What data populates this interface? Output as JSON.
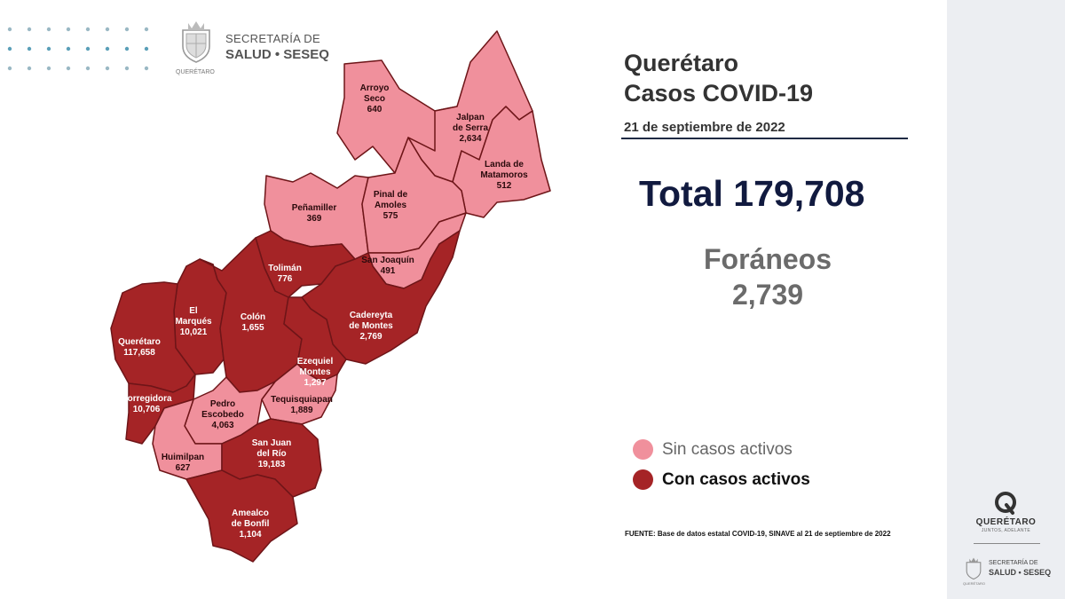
{
  "header": {
    "secretaria_label": "SECRETARÍA DE",
    "secretaria_name": "SALUD • SESEQ",
    "state_sub": "QUERÉTARO"
  },
  "title": {
    "line1": "Querétaro",
    "line2": "Casos COVID-19"
  },
  "date": "21 de septiembre de 2022",
  "total": "Total 179,708",
  "foraneos": {
    "label": "Foráneos",
    "value": "2,739"
  },
  "legend": [
    {
      "label": "Sin casos activos",
      "color": "#f0909c"
    },
    {
      "label": "Con casos activos",
      "color": "#a52426"
    }
  ],
  "source": "FUENTE: Base de datos estatal COVID-19, SINAVE al 21 de septiembre de 2022",
  "colors": {
    "inactive": "#f0909c",
    "active": "#a52426",
    "border": "#6e1518",
    "title_dark": "#111a3f"
  },
  "municipalities": [
    {
      "name": "Arroyo Seco",
      "label_lines": [
        "Arroyo",
        "Seco"
      ],
      "cases": "640",
      "status": "inactive"
    },
    {
      "name": "Jalpan de Serra",
      "label_lines": [
        "Jalpan",
        "de Serra"
      ],
      "cases": "2,634",
      "status": "inactive"
    },
    {
      "name": "Landa de Matamoros",
      "label_lines": [
        "Landa de",
        "Matamoros"
      ],
      "cases": "512",
      "status": "inactive"
    },
    {
      "name": "Peñamiller",
      "label_lines": [
        "Peñamiller"
      ],
      "cases": "369",
      "status": "inactive"
    },
    {
      "name": "Pinal de Amoles",
      "label_lines": [
        "Pinal de",
        "Amoles"
      ],
      "cases": "575",
      "status": "inactive"
    },
    {
      "name": "San Joaquín",
      "label_lines": [
        "San Joaquín"
      ],
      "cases": "491",
      "status": "inactive"
    },
    {
      "name": "Tolimán",
      "label_lines": [
        "Tolimán"
      ],
      "cases": "776",
      "status": "active"
    },
    {
      "name": "El Marqués",
      "label_lines": [
        "El",
        "Marqués"
      ],
      "cases": "10,021",
      "status": "active"
    },
    {
      "name": "Colón",
      "label_lines": [
        "Colón"
      ],
      "cases": "1,655",
      "status": "active"
    },
    {
      "name": "Cadereyta de Montes",
      "label_lines": [
        "Cadereyta",
        "de Montes"
      ],
      "cases": "2,769",
      "status": "active"
    },
    {
      "name": "Querétaro",
      "label_lines": [
        "Querétaro"
      ],
      "cases": "117,658",
      "status": "active"
    },
    {
      "name": "Ezequiel Montes",
      "label_lines": [
        "Ezequiel",
        "Montes"
      ],
      "cases": "1,297",
      "status": "active"
    },
    {
      "name": "Tequisquiapan",
      "label_lines": [
        "Tequisquiapan"
      ],
      "cases": "1,889",
      "status": "inactive"
    },
    {
      "name": "Corregidora",
      "label_lines": [
        "Corregidora"
      ],
      "cases": "10,706",
      "status": "active"
    },
    {
      "name": "Pedro Escobedo",
      "label_lines": [
        "Pedro",
        "Escobedo"
      ],
      "cases": "4,063",
      "status": "inactive"
    },
    {
      "name": "Huimilpan",
      "label_lines": [
        "Huimilpan"
      ],
      "cases": "627",
      "status": "inactive"
    },
    {
      "name": "San Juan del Río",
      "label_lines": [
        "San Juan",
        "del Río"
      ],
      "cases": "19,183",
      "status": "active"
    },
    {
      "name": "Amealco de Bonfil",
      "label_lines": [
        "Amealco",
        "de Bonfil"
      ],
      "cases": "1,104",
      "status": "active"
    }
  ],
  "sidebar": {
    "brand": "QUERÉTARO",
    "tagline": "JUNTOS, ADELANTE",
    "secretaria_label": "SECRETARÍA DE",
    "secretaria_name": "SALUD • SESEQ",
    "state_sub": "QUERÉTARO"
  }
}
